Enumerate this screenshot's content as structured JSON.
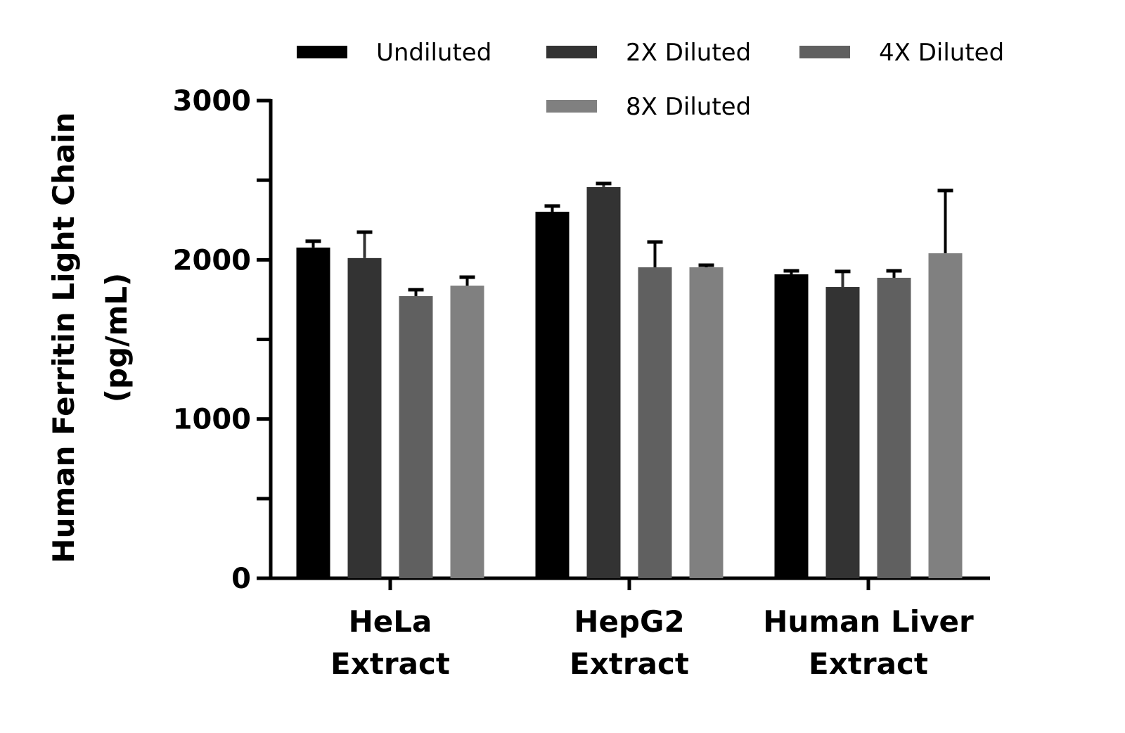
{
  "chart_data": {
    "type": "bar",
    "title": "",
    "xlabel": "",
    "ylabel": [
      "Human Ferritin Light Chain",
      "(pg/mL)"
    ],
    "ylim": [
      0,
      3000
    ],
    "yticks": [
      0,
      500,
      1000,
      1500,
      2000,
      2500,
      3000
    ],
    "ytick_labels": [
      "0",
      "",
      "1000",
      "",
      "2000",
      "",
      "3000"
    ],
    "grid": false,
    "legend_position": "top",
    "categories": [
      [
        "HeLa",
        "Extract"
      ],
      [
        "HepG2",
        "Extract"
      ],
      [
        "Human Liver",
        "Extract"
      ]
    ],
    "series": [
      {
        "name": "Undiluted",
        "color": "#000000",
        "values": [
          2077,
          2302,
          1909
        ],
        "errors": [
          40,
          36,
          22
        ]
      },
      {
        "name": "2X Diluted",
        "color": "#333333",
        "values": [
          2011,
          2457,
          1829
        ],
        "errors": [
          163,
          22,
          98
        ]
      },
      {
        "name": "4X Diluted",
        "color": "#606060",
        "values": [
          1772,
          1953,
          1887
        ],
        "errors": [
          40,
          159,
          44
        ]
      },
      {
        "name": "8X Diluted",
        "color": "#808080",
        "values": [
          1838,
          1953,
          2041
        ],
        "errors": [
          53,
          13,
          394
        ]
      }
    ]
  }
}
